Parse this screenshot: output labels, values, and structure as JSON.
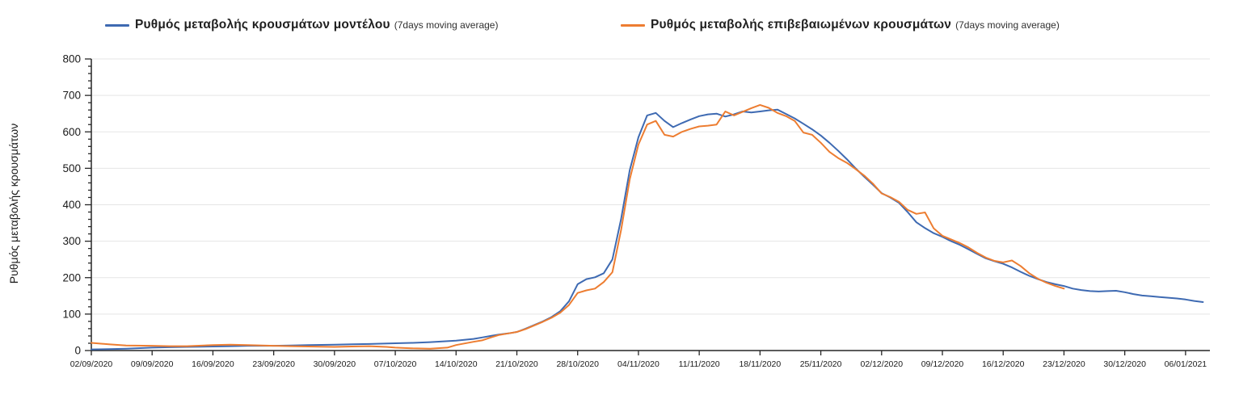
{
  "chart_data": {
    "type": "line",
    "title": "",
    "xlabel": "",
    "ylabel": "Ρυθμός μεταβολής κρουσμάτων",
    "ylim": [
      0,
      800
    ],
    "ytick_major": 100,
    "ytick_minor": 20,
    "grid": "horizontal",
    "legend_position": "top",
    "x_tick_labels": [
      "02/09/2020",
      "09/09/2020",
      "16/09/2020",
      "23/09/2020",
      "30/09/2020",
      "07/10/2020",
      "14/10/2020",
      "21/10/2020",
      "28/10/2020",
      "04/11/2020",
      "11/11/2020",
      "18/11/2020",
      "25/11/2020",
      "02/12/2020",
      "09/12/2020",
      "16/12/2020",
      "23/12/2020",
      "30/12/2020",
      "06/01/2021"
    ],
    "x_tick_days": [
      0,
      7,
      14,
      21,
      28,
      35,
      42,
      49,
      56,
      63,
      70,
      77,
      84,
      91,
      98,
      105,
      112,
      119,
      126
    ],
    "colors": {
      "axis": "#262626",
      "grid": "#e5e5e5",
      "tick_text": "#1a1a1a"
    },
    "series": [
      {
        "name": "Ρυθμός μεταβολής κρουσμάτων μοντέλου",
        "suffix": "(7days moving average)",
        "color": "#3e6ab2",
        "points": [
          [
            0,
            3
          ],
          [
            2,
            4
          ],
          [
            4,
            5
          ],
          [
            7,
            8
          ],
          [
            9,
            9
          ],
          [
            11,
            10
          ],
          [
            14,
            11
          ],
          [
            16,
            12
          ],
          [
            18,
            13
          ],
          [
            21,
            13
          ],
          [
            23,
            14
          ],
          [
            25,
            15
          ],
          [
            28,
            16
          ],
          [
            30,
            17
          ],
          [
            32,
            18
          ],
          [
            35,
            20
          ],
          [
            37,
            21
          ],
          [
            39,
            23
          ],
          [
            42,
            27
          ],
          [
            44,
            32
          ],
          [
            45,
            36
          ],
          [
            46,
            40
          ],
          [
            47,
            44
          ],
          [
            48,
            47
          ],
          [
            49,
            51
          ],
          [
            50,
            60
          ],
          [
            51,
            70
          ],
          [
            52,
            80
          ],
          [
            53,
            92
          ],
          [
            54,
            108
          ],
          [
            55,
            135
          ],
          [
            56,
            182
          ],
          [
            57,
            196
          ],
          [
            58,
            201
          ],
          [
            59,
            212
          ],
          [
            60,
            250
          ],
          [
            61,
            360
          ],
          [
            62,
            495
          ],
          [
            63,
            585
          ],
          [
            64,
            645
          ],
          [
            65,
            652
          ],
          [
            66,
            630
          ],
          [
            67,
            613
          ],
          [
            68,
            624
          ],
          [
            69,
            634
          ],
          [
            70,
            643
          ],
          [
            71,
            648
          ],
          [
            72,
            650
          ],
          [
            73,
            642
          ],
          [
            74,
            648
          ],
          [
            75,
            656
          ],
          [
            76,
            653
          ],
          [
            77,
            656
          ],
          [
            78,
            659
          ],
          [
            79,
            661
          ],
          [
            80,
            649
          ],
          [
            81,
            637
          ],
          [
            82,
            622
          ],
          [
            83,
            607
          ],
          [
            84,
            590
          ],
          [
            85,
            570
          ],
          [
            86,
            548
          ],
          [
            87,
            525
          ],
          [
            88,
            500
          ],
          [
            89,
            477
          ],
          [
            90,
            455
          ],
          [
            91,
            432
          ],
          [
            92,
            420
          ],
          [
            93,
            405
          ],
          [
            94,
            380
          ],
          [
            95,
            352
          ],
          [
            96,
            336
          ],
          [
            97,
            322
          ],
          [
            98,
            312
          ],
          [
            99,
            300
          ],
          [
            100,
            290
          ],
          [
            101,
            278
          ],
          [
            102,
            265
          ],
          [
            103,
            253
          ],
          [
            104,
            245
          ],
          [
            105,
            238
          ],
          [
            106,
            228
          ],
          [
            107,
            216
          ],
          [
            108,
            205
          ],
          [
            109,
            196
          ],
          [
            110,
            188
          ],
          [
            111,
            182
          ],
          [
            112,
            177
          ],
          [
            113,
            170
          ],
          [
            114,
            166
          ],
          [
            115,
            163
          ],
          [
            116,
            162
          ],
          [
            117,
            163
          ],
          [
            118,
            164
          ],
          [
            119,
            160
          ],
          [
            120,
            155
          ],
          [
            121,
            151
          ],
          [
            122,
            149
          ],
          [
            123,
            147
          ],
          [
            124,
            145
          ],
          [
            125,
            143
          ],
          [
            126,
            140
          ],
          [
            127,
            136
          ],
          [
            128,
            133
          ]
        ]
      },
      {
        "name": "Ρυθμός μεταβολής επιβεβαιωμένων κρουσμάτων",
        "suffix": "(7days moving average)",
        "color": "#ed7d31",
        "points": [
          [
            0,
            21
          ],
          [
            2,
            17
          ],
          [
            4,
            14
          ],
          [
            7,
            13
          ],
          [
            9,
            12
          ],
          [
            11,
            12
          ],
          [
            14,
            15
          ],
          [
            16,
            16
          ],
          [
            18,
            15
          ],
          [
            21,
            13
          ],
          [
            23,
            12
          ],
          [
            25,
            11
          ],
          [
            28,
            10
          ],
          [
            30,
            11
          ],
          [
            32,
            12
          ],
          [
            34,
            10
          ],
          [
            35,
            8
          ],
          [
            37,
            6
          ],
          [
            39,
            5
          ],
          [
            41,
            8
          ],
          [
            42,
            15
          ],
          [
            44,
            24
          ],
          [
            45,
            28
          ],
          [
            46,
            36
          ],
          [
            47,
            43
          ],
          [
            48,
            47
          ],
          [
            49,
            51
          ],
          [
            50,
            59
          ],
          [
            51,
            69
          ],
          [
            52,
            79
          ],
          [
            53,
            90
          ],
          [
            54,
            104
          ],
          [
            55,
            125
          ],
          [
            56,
            158
          ],
          [
            57,
            165
          ],
          [
            58,
            170
          ],
          [
            59,
            188
          ],
          [
            60,
            215
          ],
          [
            61,
            330
          ],
          [
            62,
            470
          ],
          [
            63,
            565
          ],
          [
            64,
            620
          ],
          [
            65,
            630
          ],
          [
            66,
            592
          ],
          [
            67,
            587
          ],
          [
            68,
            600
          ],
          [
            69,
            608
          ],
          [
            70,
            615
          ],
          [
            71,
            617
          ],
          [
            72,
            620
          ],
          [
            73,
            656
          ],
          [
            74,
            645
          ],
          [
            75,
            655
          ],
          [
            76,
            665
          ],
          [
            77,
            674
          ],
          [
            78,
            666
          ],
          [
            79,
            652
          ],
          [
            80,
            643
          ],
          [
            81,
            630
          ],
          [
            82,
            598
          ],
          [
            83,
            592
          ],
          [
            84,
            570
          ],
          [
            85,
            545
          ],
          [
            86,
            528
          ],
          [
            87,
            515
          ],
          [
            88,
            498
          ],
          [
            89,
            480
          ],
          [
            90,
            458
          ],
          [
            91,
            431
          ],
          [
            92,
            421
          ],
          [
            93,
            408
          ],
          [
            94,
            386
          ],
          [
            95,
            375
          ],
          [
            96,
            379
          ],
          [
            97,
            335
          ],
          [
            98,
            315
          ],
          [
            99,
            305
          ],
          [
            100,
            295
          ],
          [
            101,
            283
          ],
          [
            102,
            268
          ],
          [
            103,
            255
          ],
          [
            104,
            246
          ],
          [
            105,
            242
          ],
          [
            106,
            247
          ],
          [
            107,
            232
          ],
          [
            108,
            212
          ],
          [
            109,
            197
          ],
          [
            110,
            186
          ],
          [
            111,
            177
          ],
          [
            112,
            170
          ]
        ]
      }
    ]
  }
}
